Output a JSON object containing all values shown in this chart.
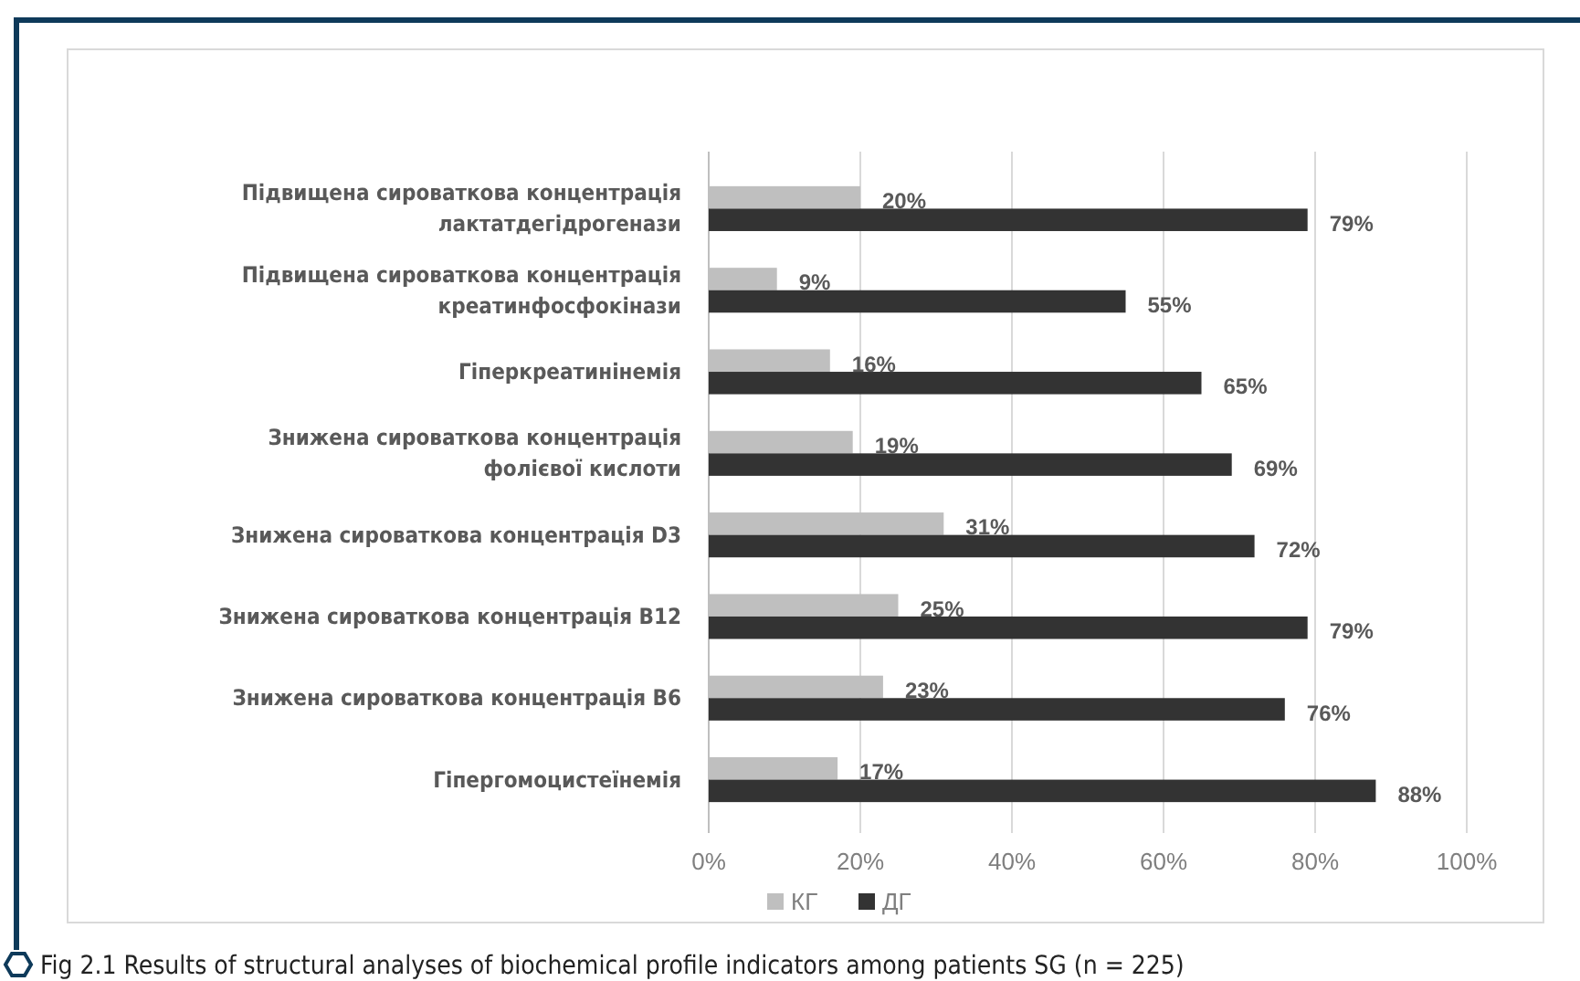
{
  "chart_data": {
    "type": "bar",
    "orientation": "horizontal",
    "categories": [
      "Підвищена сироваткова концентрація лактатдегідрогенази",
      "Підвищена сироваткова концентрація креатинфосфокінази",
      "Гіперкреатинінемія",
      "Знижена сироваткова концентрація фолієвої кислоти",
      "Знижена сироваткова концентрація D3",
      "Знижена сироваткова концентрація B12",
      "Знижена сироваткова концентрація B6",
      "Гіпергомоцистеїнемія"
    ],
    "series": [
      {
        "name": "КГ",
        "color": "#bfbfbf",
        "values": [
          20,
          9,
          16,
          19,
          31,
          25,
          23,
          17
        ],
        "value_labels": [
          "20%",
          "9%",
          "16%",
          "19%",
          "31%",
          "25%",
          "23%",
          "17%"
        ]
      },
      {
        "name": "ДГ",
        "color": "#333333",
        "values": [
          79,
          55,
          65,
          69,
          72,
          79,
          76,
          88
        ],
        "value_labels": [
          "79%",
          "55%",
          "65%",
          "69%",
          "72%",
          "79%",
          "76%",
          "88%"
        ]
      }
    ],
    "xlim": [
      0,
      100
    ],
    "xticks": [
      {
        "value": 0,
        "label": "0%"
      },
      {
        "value": 20,
        "label": "20%"
      },
      {
        "value": 40,
        "label": "40%"
      },
      {
        "value": 60,
        "label": "60%"
      },
      {
        "value": 80,
        "label": "80%"
      },
      {
        "value": 100,
        "label": "100%"
      }
    ],
    "grid": "x",
    "legend": "bottom",
    "annotations": [
      "Fig 2.1 Results of structural analyses of biochemical profile indicators among patients SG (n = 225)"
    ]
  }
}
